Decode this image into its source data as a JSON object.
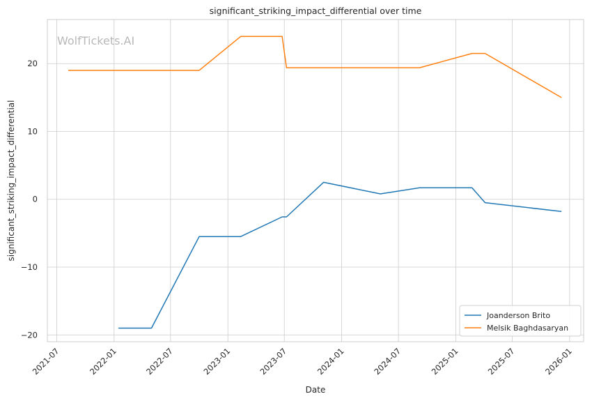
{
  "watermark": "WolfTickets.AI",
  "chart_data": {
    "type": "line",
    "title": "significant_striking_impact_differential over time",
    "xlabel": "Date",
    "ylabel": "significant_striking_impact_differential",
    "xlim": [
      "2021-06-01",
      "2026-02-15"
    ],
    "ylim": [
      -21,
      26.5
    ],
    "x_ticks": [
      "2021-07",
      "2022-01",
      "2022-07",
      "2023-01",
      "2023-07",
      "2024-01",
      "2024-07",
      "2025-01",
      "2025-07",
      "2026-01"
    ],
    "y_ticks": [
      -20,
      -10,
      0,
      10,
      20
    ],
    "grid": true,
    "legend_position": "lower-right",
    "series": [
      {
        "name": "Joanderson Brito",
        "color": "#1f77b4",
        "x": [
          "2022-01-15",
          "2022-05-01",
          "2022-10-01",
          "2023-02-11",
          "2023-06-24",
          "2023-07-08",
          "2023-11-04",
          "2024-05-04",
          "2024-09-07",
          "2025-02-22",
          "2025-04-05",
          "2025-12-06"
        ],
        "y": [
          -19,
          -19,
          -5.5,
          -5.5,
          -2.6,
          -2.6,
          2.5,
          0.8,
          1.7,
          1.7,
          -0.5,
          -1.8
        ]
      },
      {
        "name": "Melsik Baghdasaryan",
        "color": "#ff7f0e",
        "x": [
          "2021-08-07",
          "2022-10-01",
          "2023-02-11",
          "2023-06-24",
          "2023-07-08",
          "2024-09-07",
          "2025-02-22",
          "2025-04-05",
          "2025-12-06"
        ],
        "y": [
          19,
          19,
          24,
          24,
          19.4,
          19.4,
          21.5,
          21.5,
          15
        ]
      }
    ]
  }
}
